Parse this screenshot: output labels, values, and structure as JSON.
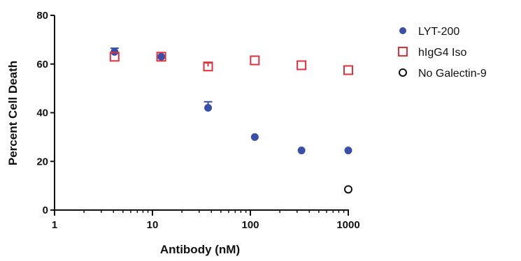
{
  "chart_data": {
    "type": "scatter",
    "title": "",
    "xlabel": "Antibody (nM)",
    "ylabel": "Percent Cell Death",
    "xscale": "log",
    "xlim": [
      1,
      1000
    ],
    "ylim": [
      0,
      80
    ],
    "xticks": [
      {
        "value": 1,
        "label": "1"
      },
      {
        "value": 10,
        "label": "10"
      },
      {
        "value": 100,
        "label": "100"
      },
      {
        "value": 1000,
        "label": "1000"
      }
    ],
    "yticks": [
      {
        "value": 0,
        "label": "0"
      },
      {
        "value": 20,
        "label": "20"
      },
      {
        "value": 40,
        "label": "40"
      },
      {
        "value": 60,
        "label": "60"
      },
      {
        "value": 80,
        "label": "80"
      }
    ],
    "grid": false,
    "legend_position": "right",
    "series": [
      {
        "name": "LYT-200",
        "marker": "filled-circle",
        "color": "#3a4fa8",
        "points": [
          {
            "x": 4.1,
            "y": 65,
            "err": 1.5
          },
          {
            "x": 12.3,
            "y": 63,
            "err": 0
          },
          {
            "x": 37,
            "y": 42,
            "err": 2.5
          },
          {
            "x": 111,
            "y": 30,
            "err": 0
          },
          {
            "x": 333,
            "y": 24.5,
            "err": 0
          },
          {
            "x": 1000,
            "y": 24.5,
            "err": 0
          }
        ]
      },
      {
        "name": "hIgG4 Iso",
        "marker": "open-square",
        "color": "#e0303a",
        "points": [
          {
            "x": 4.1,
            "y": 63,
            "err": 0
          },
          {
            "x": 12.3,
            "y": 63,
            "err": 0
          },
          {
            "x": 37,
            "y": 59,
            "err": 1.5
          },
          {
            "x": 111,
            "y": 61.5,
            "err": 0
          },
          {
            "x": 333,
            "y": 59.5,
            "err": 0
          },
          {
            "x": 1000,
            "y": 57.5,
            "err": 0
          }
        ]
      },
      {
        "name": "No Galectin-9",
        "marker": "open-circle",
        "color": "#111111",
        "points": [
          {
            "x": 1000,
            "y": 8.5,
            "err": 0
          }
        ]
      }
    ]
  }
}
